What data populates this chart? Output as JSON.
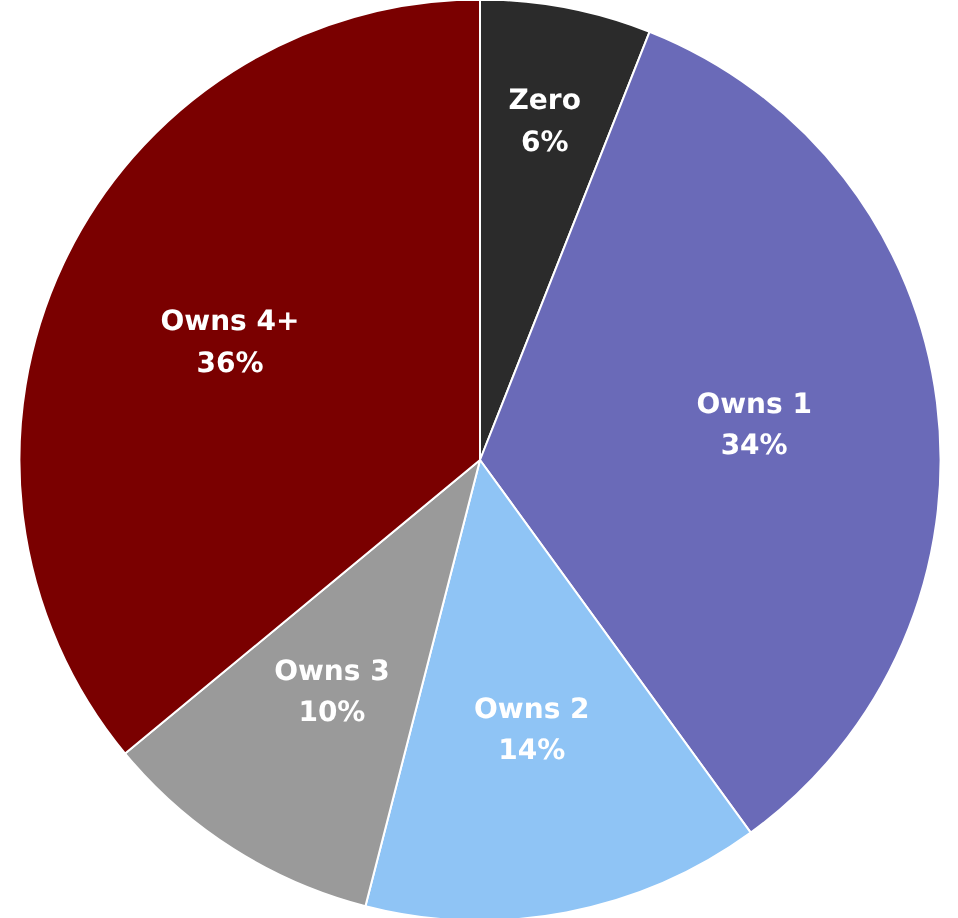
{
  "chart_data": {
    "type": "pie",
    "categories": [
      "Zero",
      "Owns 1",
      "Owns 2",
      "Owns 3",
      "Owns 4+"
    ],
    "values": [
      6,
      34,
      14,
      10,
      36
    ],
    "colors": [
      "#2b2b2b",
      "#6a6ab8",
      "#8fc4f5",
      "#9a9a9a",
      "#7a0000"
    ],
    "value_labels": [
      "6%",
      "34%",
      "14%",
      "10%",
      "36%"
    ]
  }
}
